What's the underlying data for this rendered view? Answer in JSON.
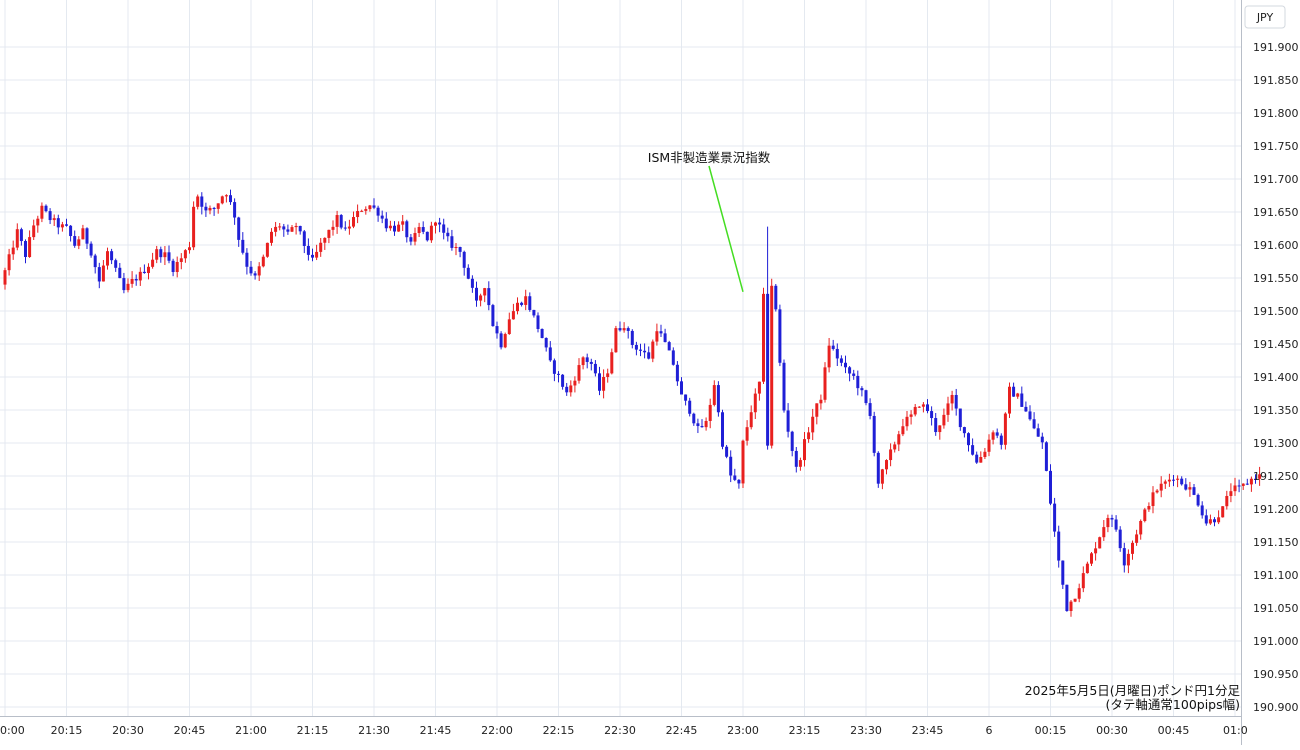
{
  "chart_data": {
    "type": "candlestick",
    "currency_label": "JPY",
    "caption_line1": "2025年5月5日(月曜日)ポンド円1分足",
    "caption_line2": "(タテ軸通常100pips幅)",
    "annotation": {
      "text": "ISM非製造業景況指数",
      "time": "23:00",
      "price": 191.52
    },
    "ylim": [
      190.885,
      191.93
    ],
    "y_ticks": [
      "191.900",
      "191.850",
      "191.800",
      "191.750",
      "191.700",
      "191.650",
      "191.600",
      "191.550",
      "191.500",
      "191.450",
      "191.400",
      "191.350",
      "191.300",
      "191.250",
      "191.200",
      "191.150",
      "191.100",
      "191.050",
      "191.000",
      "190.950",
      "190.900"
    ],
    "x_ticks": [
      "0:00",
      "20:15",
      "20:30",
      "20:45",
      "21:00",
      "21:15",
      "21:30",
      "21:45",
      "22:00",
      "22:15",
      "22:30",
      "22:45",
      "23:00",
      "23:15",
      "23:30",
      "23:45",
      "6",
      "00:15",
      "00:30",
      "00:45",
      "01:0"
    ],
    "x_tick_minutes": [
      0,
      15,
      30,
      45,
      60,
      75,
      90,
      105,
      120,
      135,
      150,
      165,
      180,
      195,
      210,
      225,
      240,
      255,
      270,
      285,
      300
    ],
    "colors": {
      "up": "#e8201f",
      "down": "#1f1fd6",
      "grid": "#e4e9f0",
      "annotation_line": "#44dd22"
    },
    "price_path": [
      [
        0,
        191.54
      ],
      [
        2,
        191.58
      ],
      [
        4,
        191.62
      ],
      [
        6,
        191.585
      ],
      [
        8,
        191.63
      ],
      [
        10,
        191.655
      ],
      [
        12,
        191.64
      ],
      [
        14,
        191.63
      ],
      [
        16,
        191.625
      ],
      [
        18,
        191.6
      ],
      [
        20,
        191.62
      ],
      [
        22,
        191.59
      ],
      [
        24,
        191.545
      ],
      [
        26,
        191.59
      ],
      [
        28,
        191.56
      ],
      [
        30,
        191.53
      ],
      [
        32,
        191.545
      ],
      [
        34,
        191.555
      ],
      [
        36,
        191.57
      ],
      [
        38,
        191.59
      ],
      [
        40,
        191.585
      ],
      [
        42,
        191.565
      ],
      [
        44,
        191.58
      ],
      [
        46,
        191.6
      ],
      [
        47,
        191.66
      ],
      [
        48,
        191.675
      ],
      [
        50,
        191.65
      ],
      [
        52,
        191.655
      ],
      [
        54,
        191.675
      ],
      [
        55,
        191.68
      ],
      [
        57,
        191.645
      ],
      [
        58,
        191.61
      ],
      [
        60,
        191.57
      ],
      [
        62,
        191.55
      ],
      [
        64,
        191.58
      ],
      [
        66,
        191.62
      ],
      [
        68,
        191.63
      ],
      [
        70,
        191.615
      ],
      [
        72,
        191.63
      ],
      [
        74,
        191.6
      ],
      [
        76,
        191.575
      ],
      [
        78,
        191.6
      ],
      [
        80,
        191.62
      ],
      [
        82,
        191.64
      ],
      [
        84,
        191.62
      ],
      [
        86,
        191.64
      ],
      [
        88,
        191.655
      ],
      [
        90,
        191.66
      ],
      [
        92,
        191.65
      ],
      [
        94,
        191.63
      ],
      [
        96,
        191.625
      ],
      [
        98,
        191.63
      ],
      [
        100,
        191.6
      ],
      [
        102,
        191.625
      ],
      [
        104,
        191.61
      ],
      [
        106,
        191.64
      ],
      [
        108,
        191.615
      ],
      [
        110,
        191.6
      ],
      [
        112,
        191.59
      ],
      [
        114,
        191.55
      ],
      [
        116,
        191.51
      ],
      [
        118,
        191.54
      ],
      [
        120,
        191.48
      ],
      [
        122,
        191.45
      ],
      [
        124,
        191.49
      ],
      [
        126,
        191.51
      ],
      [
        128,
        191.52
      ],
      [
        130,
        191.49
      ],
      [
        132,
        191.46
      ],
      [
        134,
        191.42
      ],
      [
        136,
        191.4
      ],
      [
        138,
        191.375
      ],
      [
        140,
        191.4
      ],
      [
        142,
        191.43
      ],
      [
        144,
        191.42
      ],
      [
        146,
        191.38
      ],
      [
        148,
        191.41
      ],
      [
        150,
        191.47
      ],
      [
        152,
        191.48
      ],
      [
        154,
        191.45
      ],
      [
        156,
        191.44
      ],
      [
        158,
        191.43
      ],
      [
        160,
        191.475
      ],
      [
        162,
        191.45
      ],
      [
        164,
        191.42
      ],
      [
        166,
        191.37
      ],
      [
        168,
        191.35
      ],
      [
        170,
        191.32
      ],
      [
        172,
        191.33
      ],
      [
        174,
        191.39
      ],
      [
        176,
        191.3
      ],
      [
        178,
        191.25
      ],
      [
        180,
        191.235
      ],
      [
        181,
        191.3
      ],
      [
        183,
        191.35
      ],
      [
        185,
        191.39
      ],
      [
        186,
        191.52
      ],
      [
        187,
        191.3
      ],
      [
        188,
        191.54
      ],
      [
        189,
        191.5
      ],
      [
        190,
        191.42
      ],
      [
        191,
        191.35
      ],
      [
        192,
        191.32
      ],
      [
        194,
        191.26
      ],
      [
        196,
        191.3
      ],
      [
        198,
        191.34
      ],
      [
        200,
        191.37
      ],
      [
        202,
        191.45
      ],
      [
        204,
        191.43
      ],
      [
        206,
        191.41
      ],
      [
        208,
        191.4
      ],
      [
        210,
        191.375
      ],
      [
        212,
        191.34
      ],
      [
        214,
        191.24
      ],
      [
        216,
        191.27
      ],
      [
        218,
        191.3
      ],
      [
        220,
        191.33
      ],
      [
        222,
        191.34
      ],
      [
        224,
        191.36
      ],
      [
        226,
        191.35
      ],
      [
        228,
        191.32
      ],
      [
        230,
        191.34
      ],
      [
        232,
        191.37
      ],
      [
        234,
        191.33
      ],
      [
        236,
        191.3
      ],
      [
        238,
        191.27
      ],
      [
        240,
        191.29
      ],
      [
        242,
        191.32
      ],
      [
        244,
        191.3
      ],
      [
        246,
        191.38
      ],
      [
        248,
        191.37
      ],
      [
        250,
        191.35
      ],
      [
        252,
        191.32
      ],
      [
        254,
        191.3
      ],
      [
        256,
        191.21
      ],
      [
        258,
        191.12
      ],
      [
        260,
        191.05
      ],
      [
        262,
        191.07
      ],
      [
        264,
        191.1
      ],
      [
        266,
        191.13
      ],
      [
        268,
        191.16
      ],
      [
        270,
        191.19
      ],
      [
        272,
        191.17
      ],
      [
        274,
        191.12
      ],
      [
        276,
        191.15
      ],
      [
        278,
        191.18
      ],
      [
        280,
        191.21
      ],
      [
        282,
        191.23
      ],
      [
        284,
        191.24
      ],
      [
        286,
        191.25
      ],
      [
        288,
        191.24
      ],
      [
        290,
        191.23
      ],
      [
        292,
        191.21
      ],
      [
        294,
        191.18
      ],
      [
        296,
        191.185
      ],
      [
        298,
        191.2
      ],
      [
        300,
        191.23
      ],
      [
        302,
        191.23
      ],
      [
        304,
        191.24
      ],
      [
        306,
        191.25
      ]
    ]
  }
}
